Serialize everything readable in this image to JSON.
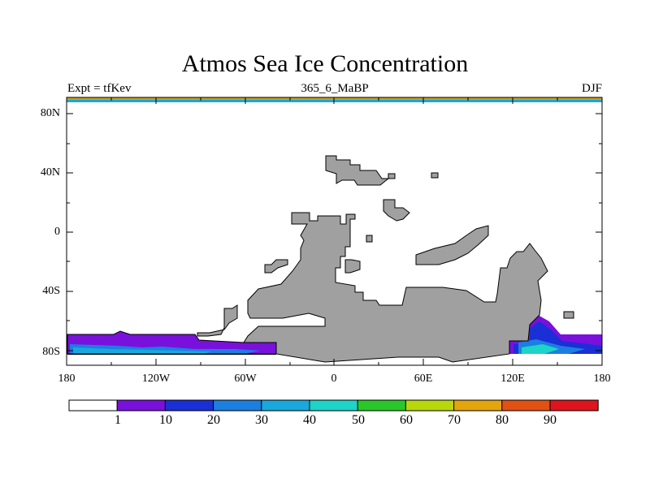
{
  "title": "Atmos Sea Ice Concentration",
  "subtitle_left": "Expt = tfKev",
  "subtitle_center": "365_6_MaBP",
  "subtitle_right": "DJF",
  "y_ticks": [
    "80N",
    "40N",
    "0",
    "40S",
    "80S"
  ],
  "x_ticks": [
    "180",
    "120W",
    "60W",
    "0",
    "60E",
    "120E",
    "180"
  ],
  "colorbar": {
    "colors": [
      "#ffffff",
      "#7a10dc",
      "#1a2fd6",
      "#1c7ee0",
      "#18a8de",
      "#1cd4c8",
      "#28c828",
      "#b8d80c",
      "#e4a40c",
      "#e25014",
      "#e0141c"
    ],
    "labels": [
      "1",
      "10",
      "20",
      "30",
      "40",
      "50",
      "60",
      "70",
      "80",
      "90"
    ]
  },
  "colors": {
    "land": "#a0a0a0",
    "ice_low": "#7a10dc",
    "ice_mid": "#1a2fd6",
    "ice_30": "#1c7ee0",
    "ice_40": "#18a8de",
    "ice_50": "#1cd4c8"
  },
  "chart_data": {
    "type": "heatmap",
    "variable": "sea ice concentration",
    "xlim": [
      -180,
      180
    ],
    "ylim": [
      -90,
      90
    ],
    "levels": [
      1,
      10,
      20,
      30,
      40,
      50,
      60,
      70,
      80,
      90
    ]
  }
}
